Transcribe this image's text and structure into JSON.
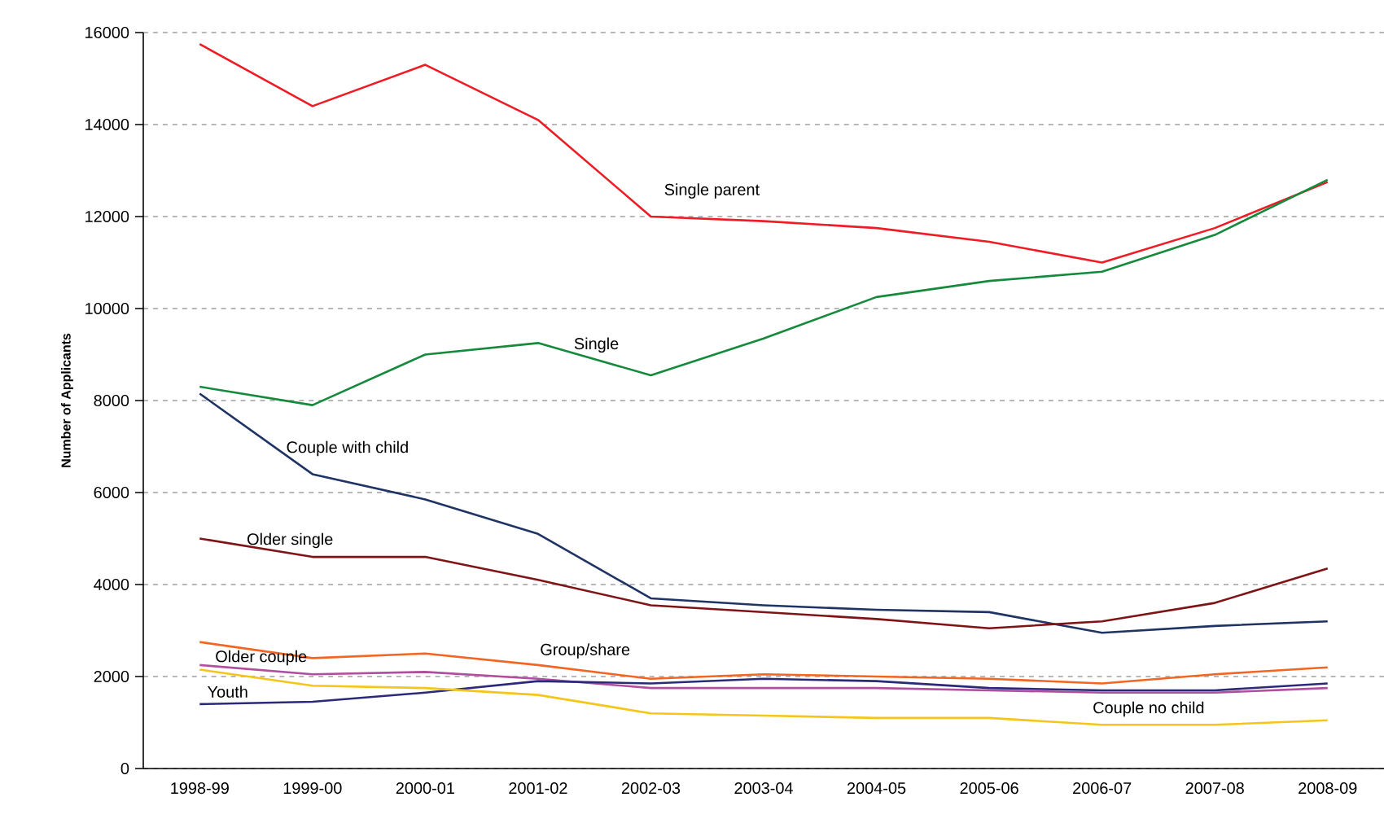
{
  "chart_data": {
    "type": "line",
    "ylabel": "Number of Applicants",
    "categories": [
      "1998-99",
      "1999-00",
      "2000-01",
      "2001-02",
      "2002-03",
      "2003-04",
      "2004-05",
      "2005-06",
      "2006-07",
      "2007-08",
      "2008-09"
    ],
    "ylim": [
      0,
      16000
    ],
    "yticks": [
      0,
      2000,
      4000,
      6000,
      8000,
      10000,
      12000,
      14000,
      16000
    ],
    "grid": "y",
    "legend": false,
    "marker": "none",
    "line_style": "solid",
    "series": [
      {
        "name": "Single parent",
        "color": "#ee1c24",
        "values": [
          15750,
          14400,
          15300,
          14100,
          12000,
          11900,
          11750,
          11450,
          11000,
          11750,
          12750
        ]
      },
      {
        "name": "Single",
        "color": "#168a3c",
        "values": [
          8300,
          7900,
          9000,
          9250,
          8550,
          9350,
          10250,
          10600,
          10800,
          11600,
          12800
        ]
      },
      {
        "name": "Couple with child",
        "color": "#1f3464",
        "values": [
          8150,
          6400,
          5850,
          5100,
          3700,
          3550,
          3450,
          3400,
          2950,
          3100,
          3200
        ]
      },
      {
        "name": "Older single",
        "color": "#7f1416",
        "values": [
          5000,
          4600,
          4600,
          4100,
          3550,
          3400,
          3250,
          3050,
          3200,
          3600,
          4350
        ]
      },
      {
        "name": "Group/share",
        "color": "#f26522",
        "values": [
          2750,
          2400,
          2500,
          2250,
          1950,
          2050,
          2000,
          1950,
          1850,
          2050,
          2200
        ]
      },
      {
        "name": "Older couple",
        "color": "#b04ea0",
        "values": [
          2250,
          2050,
          2100,
          1950,
          1750,
          1750,
          1750,
          1700,
          1650,
          1650,
          1750
        ]
      },
      {
        "name": "Youth",
        "color": "#2b2a7a",
        "values": [
          1400,
          1450,
          1650,
          1900,
          1850,
          1950,
          1900,
          1750,
          1700,
          1700,
          1850
        ]
      },
      {
        "name": "Couple no child",
        "color": "#f5c518",
        "values": [
          2150,
          1800,
          1750,
          1600,
          1200,
          1150,
          1100,
          1100,
          950,
          950,
          1050
        ]
      }
    ]
  }
}
